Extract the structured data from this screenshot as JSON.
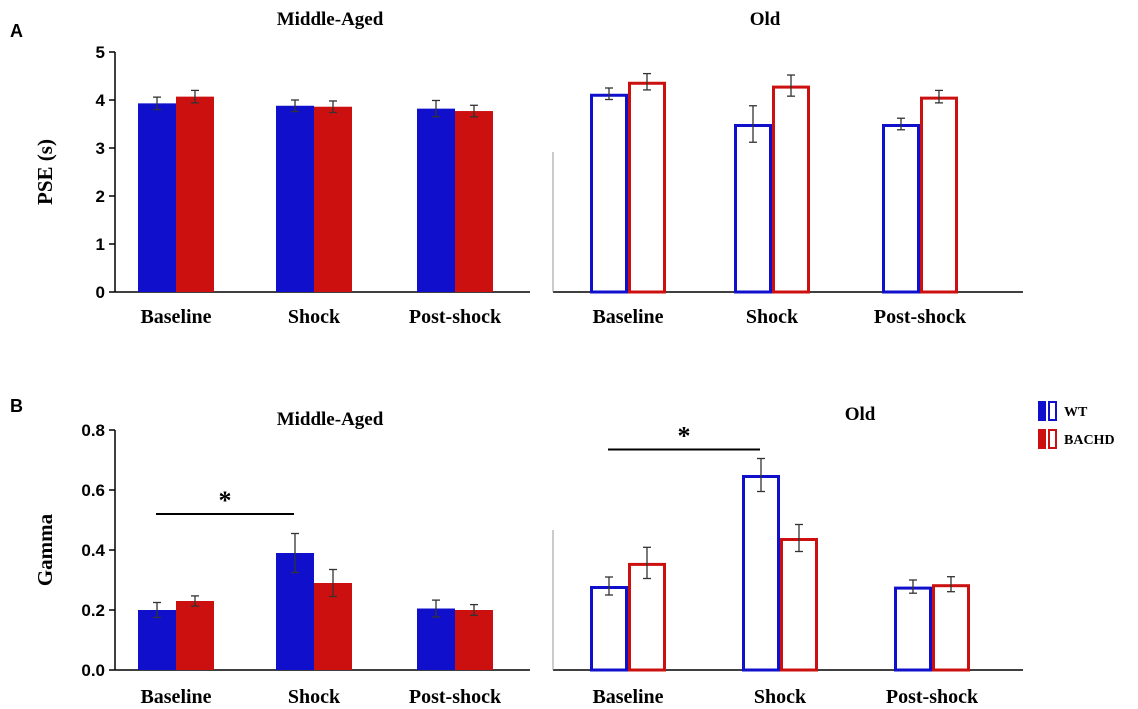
{
  "legend": {
    "items": [
      {
        "label": "WT",
        "color": "#1010cc"
      },
      {
        "label": "BACHD",
        "color": "#cc1010"
      }
    ]
  },
  "chart_data": [
    {
      "type": "bar",
      "panel": "A",
      "title": "Middle-Aged",
      "ylabel": "PSE (s)",
      "ylim": [
        0,
        5
      ],
      "yticks": [
        "0",
        "1",
        "2",
        "3",
        "4",
        "5"
      ],
      "categories": [
        "Baseline",
        "Shock",
        "Post-shock"
      ],
      "fill": "solid",
      "series": [
        {
          "name": "WT",
          "color": "#1010cc",
          "values": [
            3.93,
            3.88,
            3.82
          ],
          "errors": [
            0.13,
            0.12,
            0.17
          ]
        },
        {
          "name": "BACHD",
          "color": "#cc1010",
          "values": [
            4.07,
            3.86,
            3.77
          ],
          "errors": [
            0.13,
            0.12,
            0.12
          ]
        }
      ]
    },
    {
      "type": "bar",
      "panel": "",
      "title": "Old",
      "ylim": [
        0,
        5
      ],
      "categories": [
        "Baseline",
        "Shock",
        "Post-shock"
      ],
      "fill": "outline",
      "series": [
        {
          "name": "WT",
          "color": "#1010cc",
          "values": [
            4.13,
            3.5,
            3.5
          ],
          "errors": [
            0.12,
            0.38,
            0.12
          ]
        },
        {
          "name": "BACHD",
          "color": "#cc1010",
          "values": [
            4.38,
            4.3,
            4.07
          ],
          "errors": [
            0.17,
            0.22,
            0.13
          ]
        }
      ]
    },
    {
      "type": "bar",
      "panel": "B",
      "title": "Middle-Aged",
      "ylabel": "Gamma",
      "ylim": [
        0,
        0.8
      ],
      "yticks": [
        "0.0",
        "0.2",
        "0.4",
        "0.6",
        "0.8"
      ],
      "categories": [
        "Baseline",
        "Shock",
        "Post-shock"
      ],
      "fill": "solid",
      "significance": {
        "from": "Baseline",
        "to": "Shock",
        "label": "*",
        "y": 0.52
      },
      "series": [
        {
          "name": "WT",
          "color": "#1010cc",
          "values": [
            0.2,
            0.39,
            0.205
          ],
          "errors": [
            0.025,
            0.065,
            0.028
          ]
        },
        {
          "name": "BACHD",
          "color": "#cc1010",
          "values": [
            0.23,
            0.29,
            0.2
          ],
          "errors": [
            0.017,
            0.045,
            0.018
          ]
        }
      ]
    },
    {
      "type": "bar",
      "panel": "",
      "title": "Old",
      "ylim": [
        0,
        0.8
      ],
      "categories": [
        "Baseline",
        "Shock",
        "Post-shock"
      ],
      "fill": "outline",
      "significance": {
        "from": "Baseline",
        "to": "Shock",
        "label": "*",
        "y": 0.735
      },
      "series": [
        {
          "name": "WT",
          "color": "#1010cc",
          "values": [
            0.28,
            0.65,
            0.278
          ],
          "errors": [
            0.03,
            0.055,
            0.022
          ]
        },
        {
          "name": "BACHD",
          "color": "#cc1010",
          "values": [
            0.357,
            0.44,
            0.286
          ],
          "errors": [
            0.052,
            0.045,
            0.025
          ]
        }
      ]
    }
  ]
}
